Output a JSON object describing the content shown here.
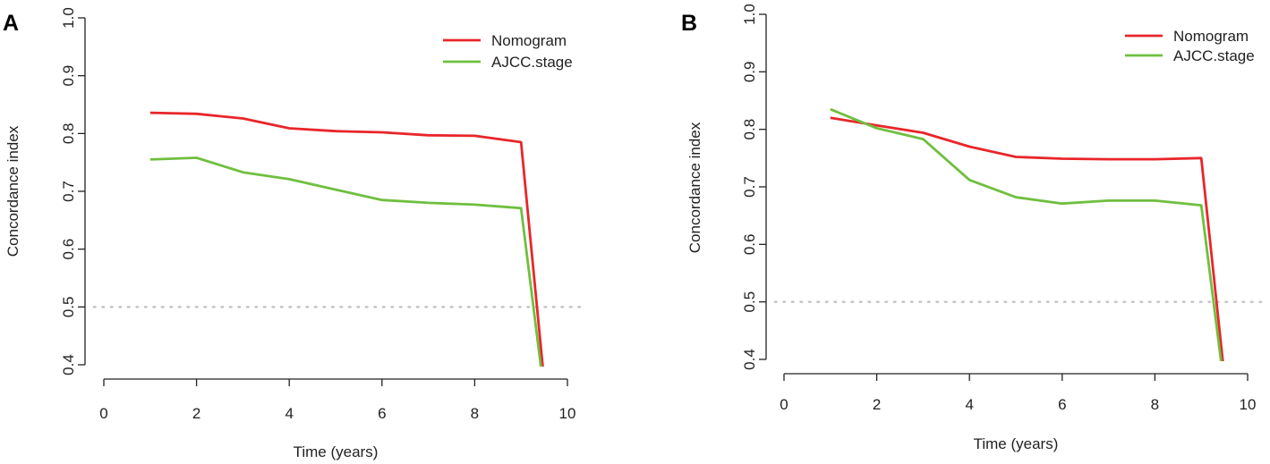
{
  "chart_data": [
    {
      "panel": "A",
      "type": "line",
      "xlabel": "Time (years)",
      "ylabel": "Concordance index",
      "xlim": [
        0,
        10
      ],
      "ylim": [
        0.4,
        1.0
      ],
      "xticks": [
        0,
        2,
        4,
        6,
        8,
        10
      ],
      "yticks": [
        0.4,
        0.5,
        0.6,
        0.7,
        0.8,
        0.9,
        1.0
      ],
      "xtick_labels": [
        "0",
        "2",
        "4",
        "6",
        "8",
        "10"
      ],
      "ytick_labels": [
        "0.4",
        "0.5",
        "0.6",
        "0.7",
        "0.8",
        "0.9",
        "1.0"
      ],
      "reference_line": {
        "y": 0.5,
        "style": "dotted",
        "color": "#c8c8c8"
      },
      "legend_position": "top-right",
      "series": [
        {
          "name": "Nomogram",
          "color": "#e8262a",
          "x": [
            1,
            2,
            3,
            4,
            5,
            6,
            7,
            8,
            9,
            9.5
          ],
          "y": [
            0.836,
            0.834,
            0.826,
            0.809,
            0.804,
            0.802,
            0.797,
            0.796,
            0.785,
            0.37
          ]
        },
        {
          "name": "AJCC.stage",
          "color": "#6fbf3f",
          "x": [
            1,
            2,
            3,
            4,
            5,
            6,
            7,
            8,
            9,
            9.47
          ],
          "y": [
            0.755,
            0.758,
            0.733,
            0.721,
            0.703,
            0.685,
            0.68,
            0.677,
            0.671,
            0.37
          ]
        }
      ]
    },
    {
      "panel": "B",
      "type": "line",
      "xlabel": "Time (years)",
      "ylabel": "Concordance index",
      "xlim": [
        0,
        10
      ],
      "ylim": [
        0.4,
        1.0
      ],
      "xticks": [
        0,
        2,
        4,
        6,
        8,
        10
      ],
      "yticks": [
        0.4,
        0.5,
        0.6,
        0.7,
        0.8,
        0.9,
        1.0
      ],
      "xtick_labels": [
        "0",
        "2",
        "4",
        "6",
        "8",
        "10"
      ],
      "ytick_labels": [
        "0.4",
        "0.5",
        "0.6",
        "0.7",
        "0.8",
        "0.9",
        "1.0"
      ],
      "reference_line": {
        "y": 0.5,
        "style": "dotted",
        "color": "#c8c8c8"
      },
      "legend_position": "top-right",
      "series": [
        {
          "name": "Nomogram",
          "color": "#e8262a",
          "x": [
            1,
            2,
            3,
            4,
            5,
            6,
            7,
            8,
            9,
            9.5
          ],
          "y": [
            0.82,
            0.807,
            0.794,
            0.77,
            0.752,
            0.749,
            0.748,
            0.748,
            0.75,
            0.37
          ]
        },
        {
          "name": "AJCC.stage",
          "color": "#6fbf3f",
          "x": [
            1,
            2,
            3,
            4,
            5,
            6,
            7,
            8,
            9,
            9.47
          ],
          "y": [
            0.835,
            0.802,
            0.783,
            0.712,
            0.682,
            0.671,
            0.676,
            0.676,
            0.668,
            0.37
          ]
        }
      ]
    }
  ]
}
